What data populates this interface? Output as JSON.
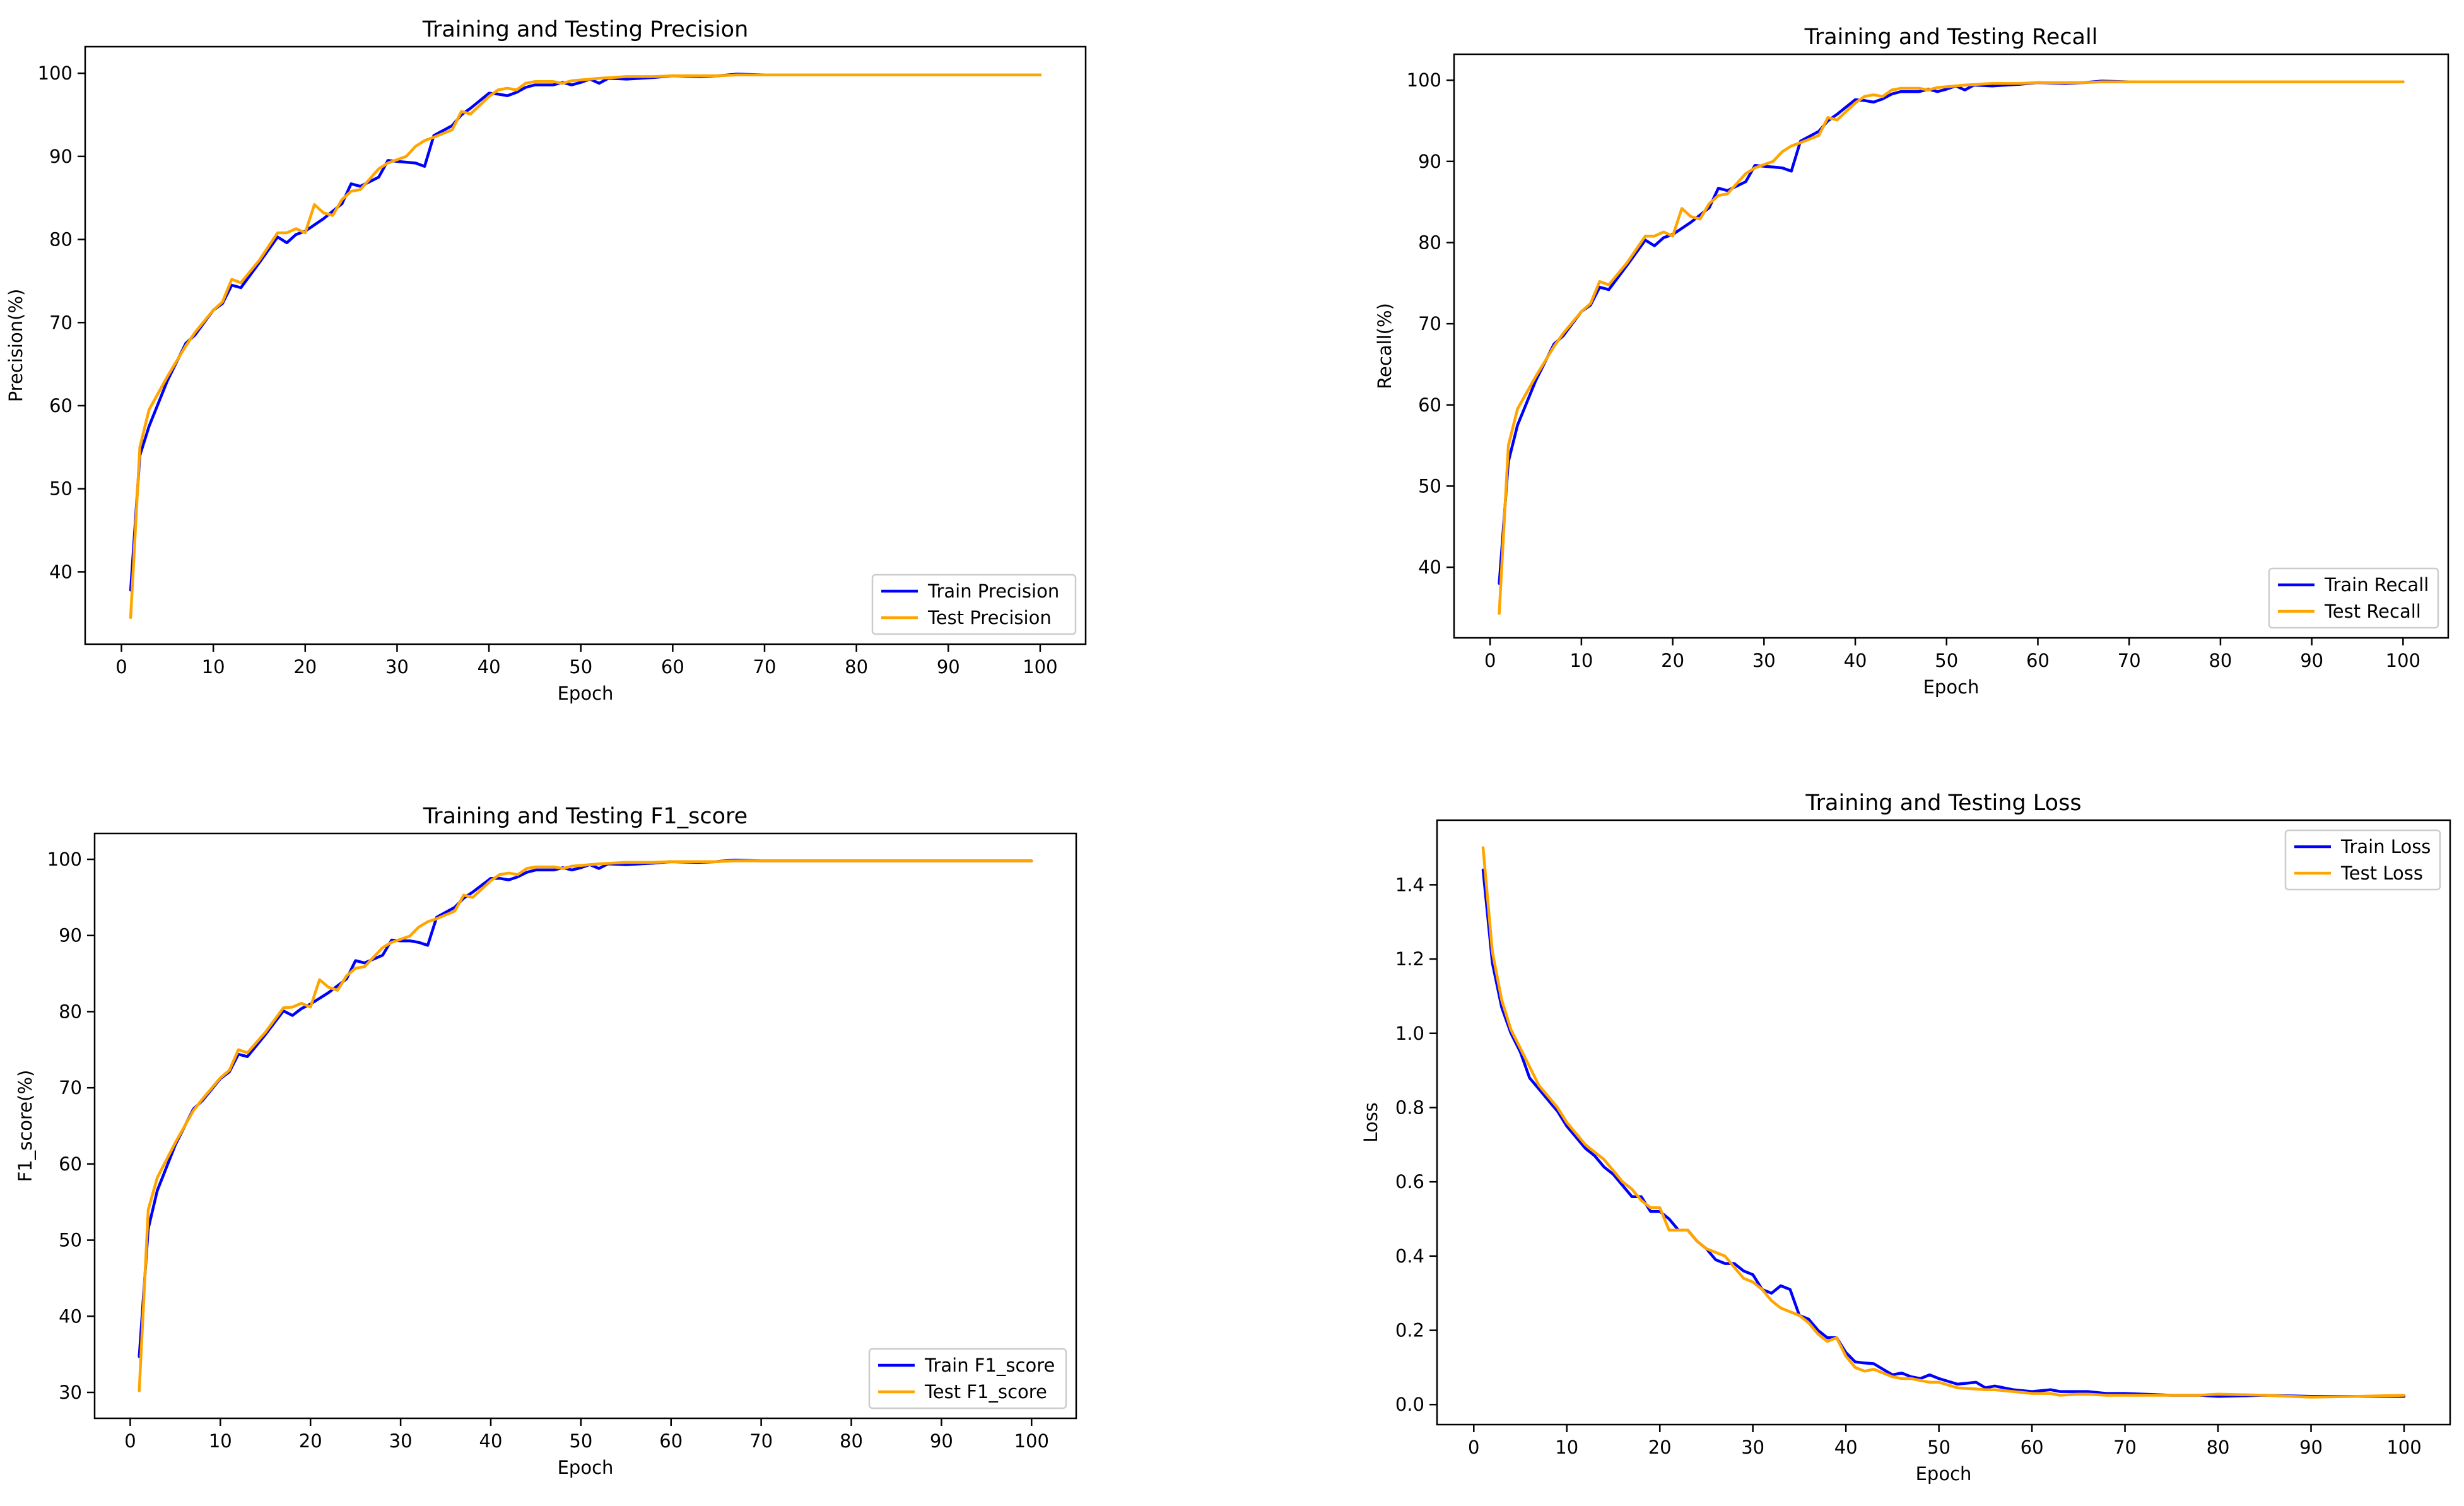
{
  "colors": {
    "train": "#0000ff",
    "test": "#ffa500"
  },
  "chart_data": [
    {
      "type": "line",
      "id": "precision",
      "title": "Training and Testing Precision",
      "xlabel": "Epoch",
      "ylabel": "Precision(%)",
      "xlim": [
        -3.95,
        104.95
      ],
      "ylim": [
        31.3,
        103.2
      ],
      "xticks": [
        0,
        10,
        20,
        30,
        40,
        50,
        60,
        70,
        80,
        90,
        100
      ],
      "yticks": [
        40,
        50,
        60,
        70,
        80,
        90,
        100
      ],
      "legend_loc": "lower right",
      "series": [
        {
          "name": "Train Precision",
          "color_key": "train",
          "x": [
            1,
            2,
            3,
            5,
            7,
            8,
            10,
            11,
            12,
            13,
            15,
            17,
            18,
            19,
            20,
            22,
            24,
            25,
            26,
            28,
            29,
            30,
            31,
            32,
            33,
            34,
            36,
            37,
            38,
            40,
            41,
            42,
            43,
            44,
            45,
            47,
            48,
            49,
            50,
            51,
            52,
            53,
            55,
            58,
            60,
            63,
            65,
            67,
            70,
            75,
            80,
            85,
            90,
            95,
            100
          ],
          "values": [
            37.8,
            54,
            57.5,
            63,
            67.5,
            68.5,
            71.5,
            72.3,
            74.5,
            74.2,
            77.2,
            80.3,
            79.6,
            80.6,
            81,
            82.5,
            84.3,
            86.7,
            86.4,
            87.5,
            89.5,
            89.4,
            89.3,
            89.2,
            88.8,
            92.5,
            93.7,
            95,
            95.8,
            97.6,
            97.5,
            97.3,
            97.7,
            98.3,
            98.6,
            98.6,
            98.9,
            98.6,
            98.9,
            99.3,
            98.8,
            99.4,
            99.3,
            99.5,
            99.7,
            99.6,
            99.7,
            99.9,
            99.8,
            99.8,
            99.8,
            99.8,
            99.8,
            99.8,
            99.8
          ]
        },
        {
          "name": "Test Precision",
          "color_key": "test",
          "x": [
            1,
            2,
            3,
            5,
            7,
            8,
            10,
            11,
            12,
            13,
            15,
            17,
            18,
            19,
            20,
            21,
            22,
            23,
            24,
            25,
            26,
            28,
            29,
            31,
            32,
            33,
            34,
            36,
            37,
            38,
            40,
            41,
            42,
            43,
            44,
            45,
            47,
            48,
            49,
            50,
            52,
            55,
            58,
            60,
            63,
            65,
            67,
            70,
            75,
            80,
            85,
            90,
            95,
            100
          ],
          "values": [
            34.5,
            55,
            59.5,
            63.5,
            67.2,
            68.8,
            71.5,
            72.5,
            75.2,
            74.8,
            77.5,
            80.8,
            80.8,
            81.3,
            80.8,
            84.2,
            83.2,
            82.9,
            84.8,
            85.8,
            86,
            88.5,
            89.2,
            90,
            91.2,
            91.9,
            92.3,
            93.2,
            95.4,
            95.1,
            97.2,
            98,
            98.2,
            98,
            98.8,
            99,
            99,
            98.8,
            99.1,
            99.2,
            99.4,
            99.6,
            99.6,
            99.7,
            99.7,
            99.7,
            99.8,
            99.8,
            99.8,
            99.8,
            99.8,
            99.8,
            99.8,
            99.8
          ]
        }
      ]
    },
    {
      "type": "line",
      "id": "recall",
      "title": "Training and Testing Recall",
      "xlabel": "Epoch",
      "ylabel": "Recall(%)",
      "xlim": [
        -3.95,
        104.95
      ],
      "ylim": [
        31.3,
        103.2
      ],
      "xticks": [
        0,
        10,
        20,
        30,
        40,
        50,
        60,
        70,
        80,
        90,
        100
      ],
      "yticks": [
        40,
        50,
        60,
        70,
        80,
        90,
        100
      ],
      "legend_loc": "lower right",
      "series": [
        {
          "name": "Train Recall",
          "color_key": "train",
          "x": [
            1,
            2,
            3,
            5,
            7,
            8,
            10,
            11,
            12,
            13,
            15,
            17,
            18,
            19,
            20,
            22,
            24,
            25,
            26,
            28,
            29,
            30,
            31,
            32,
            33,
            34,
            36,
            37,
            38,
            40,
            41,
            42,
            43,
            44,
            45,
            47,
            48,
            49,
            50,
            51,
            52,
            53,
            55,
            58,
            60,
            63,
            65,
            67,
            70,
            75,
            80,
            85,
            90,
            95,
            100
          ],
          "values": [
            38,
            53,
            57.5,
            63,
            67.5,
            68.5,
            71.5,
            72.3,
            74.5,
            74.2,
            77.2,
            80.3,
            79.6,
            80.6,
            81,
            82.5,
            84.3,
            86.7,
            86.4,
            87.5,
            89.5,
            89.4,
            89.3,
            89.2,
            88.8,
            92.5,
            93.7,
            95,
            95.8,
            97.6,
            97.5,
            97.3,
            97.7,
            98.3,
            98.6,
            98.6,
            98.9,
            98.6,
            98.9,
            99.3,
            98.8,
            99.4,
            99.3,
            99.5,
            99.7,
            99.6,
            99.7,
            99.9,
            99.8,
            99.8,
            99.8,
            99.8,
            99.8,
            99.8,
            99.8
          ]
        },
        {
          "name": "Test Recall",
          "color_key": "test",
          "x": [
            1,
            2,
            3,
            5,
            7,
            8,
            10,
            11,
            12,
            13,
            15,
            17,
            18,
            19,
            20,
            21,
            22,
            23,
            24,
            25,
            26,
            28,
            29,
            31,
            32,
            33,
            34,
            36,
            37,
            38,
            40,
            41,
            42,
            43,
            44,
            45,
            47,
            48,
            49,
            50,
            52,
            55,
            58,
            60,
            63,
            65,
            67,
            70,
            75,
            80,
            85,
            90,
            95,
            100
          ],
          "values": [
            34.3,
            55,
            59.5,
            63.5,
            67.2,
            68.8,
            71.5,
            72.5,
            75.2,
            74.8,
            77.5,
            80.8,
            80.8,
            81.3,
            80.8,
            84.2,
            83.2,
            82.9,
            84.8,
            85.8,
            86,
            88.5,
            89.2,
            90,
            91.2,
            91.9,
            92.3,
            93.2,
            95.4,
            95.1,
            97.2,
            98,
            98.2,
            98,
            98.8,
            99,
            99,
            98.8,
            99.1,
            99.2,
            99.4,
            99.6,
            99.6,
            99.7,
            99.7,
            99.7,
            99.8,
            99.8,
            99.8,
            99.8,
            99.8,
            99.8,
            99.8,
            99.8
          ]
        }
      ]
    },
    {
      "type": "line",
      "id": "f1",
      "title": "Training and Testing F1_score",
      "xlabel": "Epoch",
      "ylabel": "F1_score(%)",
      "xlim": [
        -3.95,
        104.95
      ],
      "ylim": [
        26.6,
        103.4
      ],
      "xticks": [
        0,
        10,
        20,
        30,
        40,
        50,
        60,
        70,
        80,
        90,
        100
      ],
      "yticks": [
        30,
        40,
        50,
        60,
        70,
        80,
        90,
        100
      ],
      "legend_loc": "lower right",
      "series": [
        {
          "name": "Train F1_score",
          "color_key": "train",
          "x": [
            1,
            2,
            3,
            5,
            7,
            8,
            10,
            11,
            12,
            13,
            15,
            17,
            18,
            19,
            20,
            22,
            24,
            25,
            26,
            28,
            29,
            30,
            31,
            32,
            33,
            34,
            36,
            37,
            38,
            40,
            41,
            42,
            43,
            44,
            45,
            47,
            48,
            49,
            50,
            51,
            52,
            53,
            55,
            58,
            60,
            63,
            65,
            67,
            70,
            75,
            80,
            85,
            90,
            95,
            100
          ],
          "values": [
            34.7,
            51.5,
            56.5,
            62.5,
            67.2,
            68.3,
            71.2,
            72.1,
            74.4,
            74.1,
            77,
            80.1,
            79.5,
            80.4,
            81,
            82.5,
            84.3,
            86.7,
            86.4,
            87.4,
            89.4,
            89.3,
            89.3,
            89.1,
            88.7,
            92.4,
            93.7,
            94.9,
            95.7,
            97.5,
            97.5,
            97.3,
            97.7,
            98.3,
            98.6,
            98.6,
            98.9,
            98.6,
            98.9,
            99.3,
            98.8,
            99.4,
            99.3,
            99.5,
            99.7,
            99.6,
            99.7,
            99.9,
            99.8,
            99.8,
            99.8,
            99.8,
            99.8,
            99.8,
            99.8
          ]
        },
        {
          "name": "Test F1_score",
          "color_key": "test",
          "x": [
            1,
            2,
            3,
            5,
            7,
            8,
            10,
            11,
            12,
            13,
            15,
            17,
            18,
            19,
            20,
            21,
            22,
            23,
            24,
            25,
            26,
            28,
            29,
            31,
            32,
            33,
            34,
            36,
            37,
            38,
            40,
            41,
            42,
            43,
            44,
            45,
            47,
            48,
            49,
            50,
            52,
            55,
            58,
            60,
            63,
            65,
            67,
            70,
            75,
            80,
            85,
            90,
            95,
            100
          ],
          "values": [
            30.2,
            54,
            58.2,
            62.8,
            67,
            68.5,
            71.3,
            72.3,
            75,
            74.6,
            77.3,
            80.5,
            80.6,
            81.1,
            80.6,
            84.2,
            83.2,
            82.8,
            84.7,
            85.7,
            85.9,
            88.4,
            89.1,
            89.9,
            91.1,
            91.8,
            92.2,
            93.2,
            95.3,
            95,
            97.2,
            98,
            98.2,
            98,
            98.8,
            99,
            99,
            98.8,
            99.1,
            99.2,
            99.4,
            99.6,
            99.6,
            99.7,
            99.7,
            99.7,
            99.8,
            99.8,
            99.8,
            99.8,
            99.8,
            99.8,
            99.8,
            99.8
          ]
        }
      ]
    },
    {
      "type": "line",
      "id": "loss",
      "title": "Training and Testing Loss",
      "xlabel": "Epoch",
      "ylabel": "Loss",
      "xlim": [
        -3.95,
        104.95
      ],
      "ylim": [
        -0.054,
        1.574
      ],
      "xticks": [
        0,
        10,
        20,
        30,
        40,
        50,
        60,
        70,
        80,
        90,
        100
      ],
      "yticks": [
        0.0,
        0.2,
        0.4,
        0.6,
        0.8,
        1.0,
        1.2,
        1.4
      ],
      "ytick_labels": [
        "0.0",
        "0.2",
        "0.4",
        "0.6",
        "0.8",
        "1.0",
        "1.2",
        "1.4"
      ],
      "legend_loc": "upper right",
      "series": [
        {
          "name": "Train Loss",
          "color_key": "train",
          "x": [
            1,
            2,
            3,
            4,
            5,
            6,
            7,
            8,
            9,
            10,
            11,
            12,
            13,
            14,
            15,
            16,
            17,
            18,
            19,
            20,
            21,
            22,
            23,
            24,
            25,
            26,
            27,
            28,
            29,
            30,
            31,
            32,
            33,
            34,
            35,
            36,
            37,
            38,
            39,
            40,
            41,
            42,
            43,
            44,
            45,
            46,
            47,
            48,
            49,
            50,
            52,
            54,
            55,
            56,
            58,
            60,
            62,
            63,
            65,
            66,
            68,
            70,
            75,
            78,
            80,
            85,
            90,
            95,
            100
          ],
          "values": [
            1.44,
            1.19,
            1.07,
            1.0,
            0.95,
            0.88,
            0.85,
            0.82,
            0.79,
            0.75,
            0.72,
            0.69,
            0.67,
            0.64,
            0.62,
            0.59,
            0.56,
            0.56,
            0.52,
            0.52,
            0.5,
            0.47,
            0.47,
            0.44,
            0.42,
            0.39,
            0.38,
            0.38,
            0.36,
            0.35,
            0.31,
            0.3,
            0.32,
            0.31,
            0.24,
            0.23,
            0.2,
            0.18,
            0.18,
            0.14,
            0.115,
            0.112,
            0.11,
            0.095,
            0.08,
            0.085,
            0.075,
            0.07,
            0.08,
            0.07,
            0.055,
            0.06,
            0.045,
            0.05,
            0.04,
            0.035,
            0.04,
            0.035,
            0.035,
            0.035,
            0.03,
            0.03,
            0.025,
            0.025,
            0.022,
            0.025,
            0.022,
            0.022,
            0.022
          ]
        },
        {
          "name": "Test Loss",
          "color_key": "test",
          "x": [
            1,
            2,
            3,
            4,
            5,
            6,
            7,
            8,
            9,
            10,
            11,
            12,
            13,
            14,
            15,
            16,
            17,
            18,
            19,
            20,
            21,
            22,
            23,
            24,
            25,
            26,
            27,
            28,
            29,
            30,
            31,
            32,
            33,
            34,
            35,
            36,
            37,
            38,
            39,
            40,
            41,
            42,
            43,
            44,
            45,
            46,
            47,
            48,
            49,
            50,
            52,
            54,
            55,
            56,
            58,
            60,
            62,
            63,
            65,
            66,
            68,
            70,
            75,
            78,
            80,
            85,
            90,
            95,
            100
          ],
          "values": [
            1.5,
            1.22,
            1.09,
            1.01,
            0.96,
            0.91,
            0.86,
            0.83,
            0.8,
            0.76,
            0.73,
            0.7,
            0.68,
            0.66,
            0.63,
            0.6,
            0.58,
            0.55,
            0.53,
            0.53,
            0.47,
            0.47,
            0.47,
            0.44,
            0.42,
            0.41,
            0.4,
            0.37,
            0.34,
            0.33,
            0.31,
            0.28,
            0.26,
            0.25,
            0.24,
            0.22,
            0.19,
            0.17,
            0.18,
            0.13,
            0.1,
            0.09,
            0.095,
            0.085,
            0.075,
            0.07,
            0.07,
            0.065,
            0.06,
            0.06,
            0.045,
            0.042,
            0.04,
            0.04,
            0.035,
            0.03,
            0.03,
            0.025,
            0.028,
            0.028,
            0.025,
            0.025,
            0.025,
            0.025,
            0.028,
            0.025,
            0.02,
            0.022,
            0.025
          ]
        }
      ]
    }
  ]
}
